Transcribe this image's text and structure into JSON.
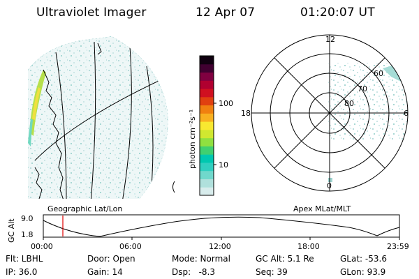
{
  "header": {
    "title": "Ultraviolet Imager",
    "date": "12 Apr 07",
    "time": "01:20:07 UT"
  },
  "colorbar": {
    "unit_label": "photon cm⁻²s⁻¹",
    "tick_100": "100",
    "tick_10": "10",
    "colors": [
      "#d8ecec",
      "#b0e0dc",
      "#70d8cc",
      "#30cfc0",
      "#00c8b0",
      "#40d070",
      "#90e040",
      "#d0e830",
      "#f8e830",
      "#f8b020",
      "#f08010",
      "#e04010",
      "#d01020",
      "#b00030",
      "#800040",
      "#400030",
      "#100010"
    ]
  },
  "left_panel": {
    "caption": "Geographic Lat/Lon"
  },
  "polar_panel": {
    "caption": "Apex MLat/MLT",
    "mlt_labels": {
      "top": "12",
      "left": "18",
      "right": "6",
      "bottom": "0"
    },
    "lat_labels": [
      "60",
      "70",
      "80"
    ]
  },
  "altitude_plot": {
    "ylabel": "GC Alt",
    "ytick_top": "9.0",
    "ytick_bottom": "1.8",
    "xticks": [
      "00:00",
      "06:00",
      "12:00",
      "18:00",
      "23:59"
    ],
    "marker_color": "#e00000"
  },
  "info": {
    "flt": "Flt: LBHL",
    "ip": "IP: 36.0",
    "door": "Door: Open",
    "gain": "Gain: 14",
    "mode": "Mode: Normal",
    "dsp": "Dsp:   -8.3",
    "gcalt": "GC Alt: 5.1 Re",
    "seq": "Seq: 39",
    "glat": "GLat: -53.6",
    "glon": "GLon: 93.9"
  }
}
